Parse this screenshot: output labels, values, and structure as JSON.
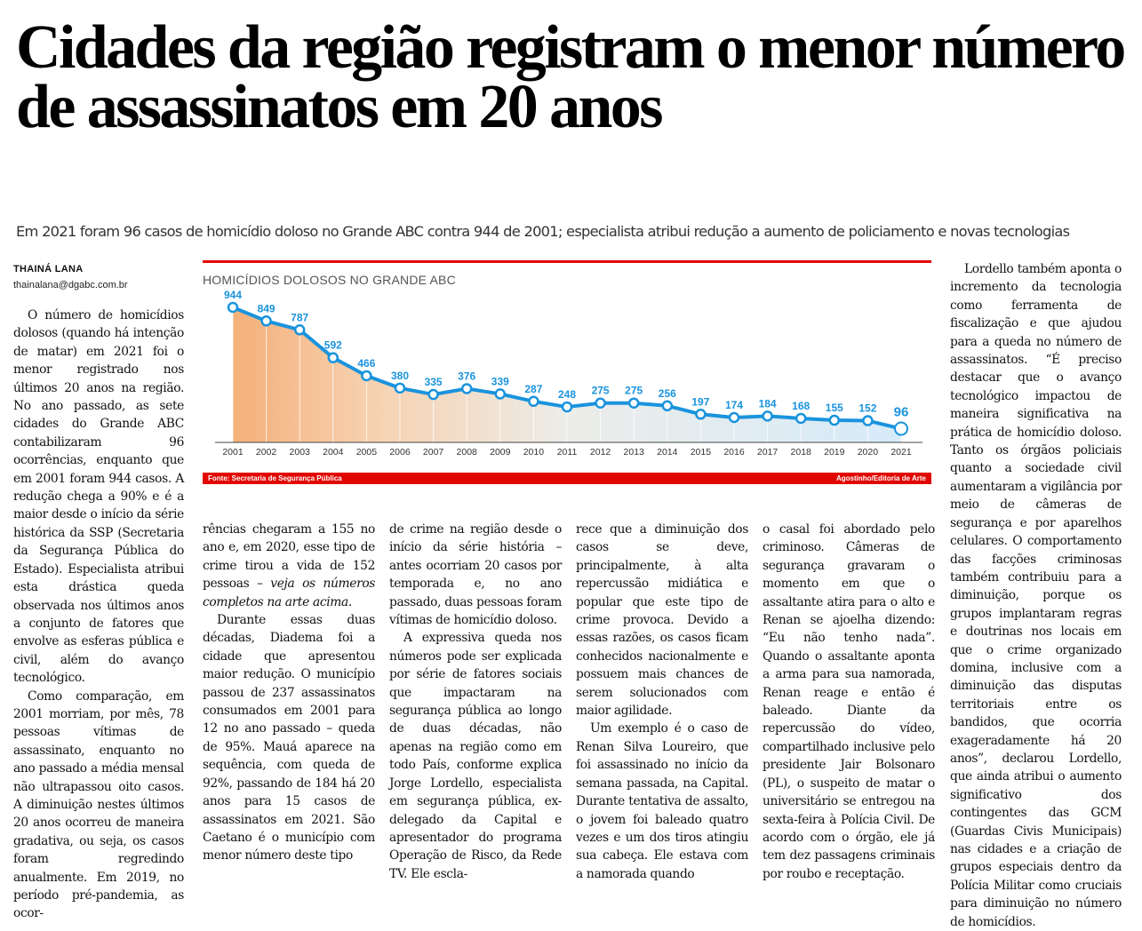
{
  "article": {
    "headline": "Cidades da região registram o menor número de assassinatos em 20 anos",
    "deck": "Em 2021 foram 96 casos de homicídio doloso no Grande ABC contra 944 de 2001; especialista atribui redução a aumento de policiamento e novas tecnologias",
    "author": "THAINÁ LANA",
    "email": "thainalana@dgabc.com.br"
  },
  "columns": {
    "c1": [
      "O número de homicídios dolosos (quando há intenção de matar) em 2021 foi o menor registrado nos últimos 20 anos na região. No ano passado, as sete cidades do Grande ABC contabilizaram 96 ocorrências, enquanto que em 2001 foram 944 casos. A redução chega a 90% e é a maior desde o início da série histórica da SSP (Secretaria da Segurança Pública do Estado). Especialista atribui esta drástica queda observada nos últimos anos a conjunto de fatores que envolve as esferas pública e civil, além do avanço tecnológico.",
      "Como comparação, em 2001 morriam, por mês, 78 pessoas vítimas de assassinato, enquanto no ano passado a média mensal não ultrapassou oito casos. A diminuição nestes últimos 20 anos ocorreu de maneira gradativa, ou seja, os casos foram regredindo anualmente. Em 2019, no período pré-pandemia, as ocor-"
    ],
    "c2_text": "rências chegaram a 155 no ano e, em 2020, esse tipo de crime tirou a vida de 152 pessoas –",
    "c2_em": "veja os números completos na arte acima.",
    "c2_p2": "Durante essas duas décadas, Diadema foi a cidade que apresentou maior redução. O município passou de 237 assassinatos consumados em 2001 para 12 no ano passado – queda de 95%. Mauá aparece na sequência, com queda de 92%, passando de 184 há 20 anos para 15 casos de assassinatos em 2021. São Caetano é o município com menor número deste tipo",
    "c3": [
      "de crime na região desde o início da série história – antes ocorriam 20 casos por temporada e, no ano passado, duas pessoas foram vítimas de homicídio doloso.",
      "A expressiva queda nos números pode ser explicada por série de fatores sociais que impactaram na segurança pública ao longo de duas décadas, não apenas na região como em todo País, conforme explica Jorge Lordello, especialista em segurança pública, ex-delegado da Capital e apresentador do programa Operação de Risco, da Rede TV. Ele escla-"
    ],
    "c4": [
      "rece que a diminuição dos casos se deve, principalmente, à alta repercussão midiática e popular que este tipo de crime provoca. Devido a essas razões, os casos ficam conhecidos nacionalmente e possuem mais chances de serem solucionados com maior agilidade.",
      "Um exemplo é o caso de Renan Silva Loureiro, que foi assassinado no início da semana passada, na Capital. Durante tentativa de assalto, o jovem foi baleado quatro vezes e um dos tiros atingiu sua cabeça. Ele estava com a namorada quando"
    ],
    "c5": [
      "o casal foi abordado pelo criminoso. Câmeras de segurança gravaram o momento em que o assaltante atira para o alto e Renan se ajoelha dizendo: “Eu não tenho nada”. Quando o assaltante aponta a arma para sua namorada, Renan reage e então é baleado. Diante da repercussão do vídeo, compartilhado inclusive pelo presidente Jair Bolsonaro (PL), o suspeito de matar o universitário se entregou na sexta-feira à Polícia Civil. De acordo com o órgão, ele já tem dez passagens criminais por roubo e receptação."
    ],
    "c6": [
      "Lordello também aponta o incremento da tecnologia como ferramenta de fiscalização e que ajudou para a queda no número de assassinatos. “É preciso destacar que o avanço tecnológico impactou de maneira significativa na prática de homicídio doloso. Tanto os órgãos policiais quanto a sociedade civil aumentaram a vigilância por meio de câmeras de segurança e por aparelhos celulares. O comportamento das facções criminosas também contribuiu para a diminuição, porque os grupos implantaram regras e doutrinas nos locais em que o crime organizado domina, inclusive com a diminuição das disputas territoriais entre os bandidos, que ocorria exageradamente há 20 anos”, declarou Lordello, que ainda atribui o aumento significativo dos contingentes das GCM (Guardas Civis Municipais) nas cidades e a criação de grupos especiais dentro da Polícia Militar como cruciais para diminuição no número de homicídios."
    ]
  },
  "chart_data": {
    "type": "area",
    "title": "HOMICÍDIOS DOLOSOS NO GRANDE ABC",
    "categories": [
      "2001",
      "2002",
      "2003",
      "2004",
      "2005",
      "2006",
      "2007",
      "2008",
      "2009",
      "2010",
      "2011",
      "2012",
      "2013",
      "2014",
      "2015",
      "2016",
      "2017",
      "2018",
      "2019",
      "2020",
      "2021"
    ],
    "values": [
      944,
      849,
      787,
      592,
      466,
      380,
      335,
      376,
      339,
      287,
      248,
      275,
      275,
      256,
      197,
      174,
      184,
      168,
      155,
      152,
      96
    ],
    "ylim": [
      0,
      1000
    ],
    "source": "Fonte: Secretaria de Segurança Pública",
    "credit": "Agostinho/Editoria de Arte",
    "line_color": "#1a93dd",
    "accent_color": "#e10600"
  }
}
